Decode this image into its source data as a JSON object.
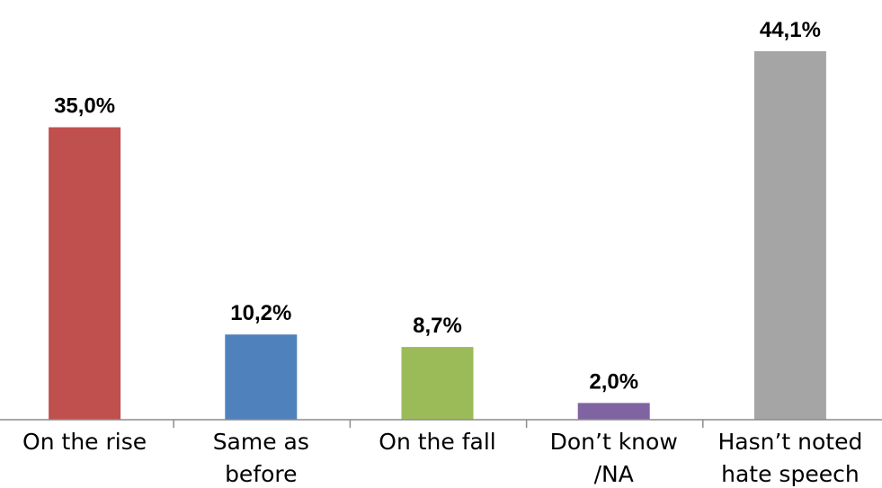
{
  "chart_data": {
    "type": "bar",
    "categories": [
      [
        "On the rise"
      ],
      [
        "Same as",
        "before"
      ],
      [
        "On the fall"
      ],
      [
        "Don’t know",
        "/NA"
      ],
      [
        "Hasn’t noted",
        "hate speech"
      ]
    ],
    "values": [
      35.0,
      10.2,
      8.7,
      2.0,
      44.1
    ],
    "value_labels": [
      "35,0%",
      "10,2%",
      "8,7%",
      "2,0%",
      "44,1%"
    ],
    "colors": [
      "#c0504d",
      "#4f81bd",
      "#9bbb59",
      "#8064a2",
      "#a5a5a5"
    ],
    "title": "",
    "xlabel": "",
    "ylabel": "",
    "ylim": [
      0,
      44.1
    ],
    "grid": false,
    "legend": "none"
  }
}
